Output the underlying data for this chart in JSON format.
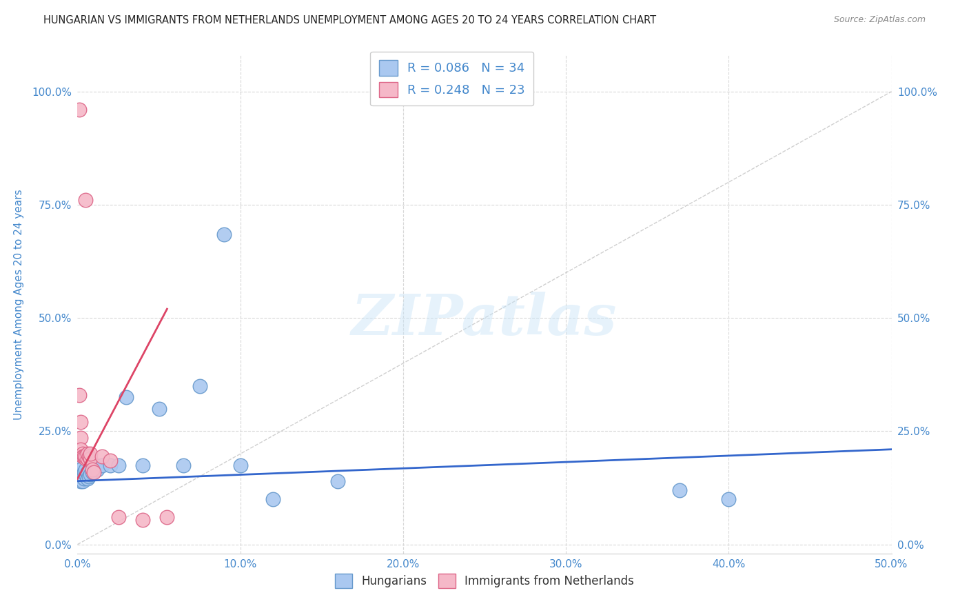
{
  "title": "HUNGARIAN VS IMMIGRANTS FROM NETHERLANDS UNEMPLOYMENT AMONG AGES 20 TO 24 YEARS CORRELATION CHART",
  "source": "Source: ZipAtlas.com",
  "ylabel": "Unemployment Among Ages 20 to 24 years",
  "xlim": [
    0.0,
    0.5
  ],
  "ylim": [
    -0.02,
    1.08
  ],
  "xticks": [
    0.0,
    0.1,
    0.2,
    0.3,
    0.4,
    0.5
  ],
  "xtick_labels": [
    "0.0%",
    "10.0%",
    "20.0%",
    "30.0%",
    "40.0%",
    "50.0%"
  ],
  "yticks": [
    0.0,
    0.25,
    0.5,
    0.75,
    1.0
  ],
  "ytick_labels": [
    "0.0%",
    "25.0%",
    "50.0%",
    "75.0%",
    "100.0%"
  ],
  "background_color": "#ffffff",
  "grid_color": "#d8d8d8",
  "watermark_text": "ZIPatlas",
  "blue_dot_color": "#aac8f0",
  "blue_edge_color": "#6699cc",
  "pink_dot_color": "#f5b8c8",
  "pink_edge_color": "#dd6688",
  "blue_line_color": "#3366cc",
  "pink_line_color": "#dd4466",
  "axis_color": "#4488cc",
  "title_color": "#222222",
  "source_color": "#888888",
  "R_blue": 0.086,
  "N_blue": 34,
  "R_pink": 0.248,
  "N_pink": 23,
  "blue_x": [
    0.001,
    0.001,
    0.001,
    0.002,
    0.002,
    0.002,
    0.003,
    0.003,
    0.004,
    0.004,
    0.005,
    0.005,
    0.006,
    0.006,
    0.007,
    0.008,
    0.009,
    0.01,
    0.011,
    0.012,
    0.015,
    0.02,
    0.025,
    0.03,
    0.04,
    0.05,
    0.065,
    0.075,
    0.09,
    0.1,
    0.12,
    0.16,
    0.37,
    0.4
  ],
  "blue_y": [
    0.145,
    0.155,
    0.17,
    0.14,
    0.155,
    0.165,
    0.14,
    0.15,
    0.145,
    0.16,
    0.155,
    0.165,
    0.145,
    0.16,
    0.15,
    0.155,
    0.16,
    0.17,
    0.175,
    0.165,
    0.175,
    0.175,
    0.175,
    0.325,
    0.175,
    0.3,
    0.175,
    0.35,
    0.685,
    0.175,
    0.1,
    0.14,
    0.12,
    0.1
  ],
  "pink_x": [
    0.001,
    0.001,
    0.002,
    0.002,
    0.002,
    0.003,
    0.003,
    0.004,
    0.005,
    0.005,
    0.005,
    0.006,
    0.006,
    0.007,
    0.008,
    0.008,
    0.009,
    0.01,
    0.015,
    0.02,
    0.025,
    0.04,
    0.055
  ],
  "pink_y": [
    0.96,
    0.33,
    0.27,
    0.235,
    0.21,
    0.2,
    0.195,
    0.195,
    0.19,
    0.195,
    0.76,
    0.19,
    0.2,
    0.195,
    0.19,
    0.2,
    0.165,
    0.16,
    0.195,
    0.185,
    0.06,
    0.055,
    0.06
  ],
  "diag_line_color": "#bbbbbb",
  "blue_trend_x": [
    0.0,
    0.5
  ],
  "blue_trend_y": [
    0.14,
    0.21
  ],
  "pink_trend_x": [
    0.0,
    0.055
  ],
  "pink_trend_y": [
    0.145,
    0.52
  ]
}
